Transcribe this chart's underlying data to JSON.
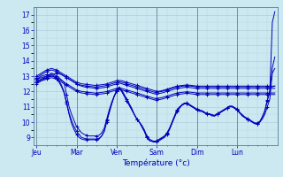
{
  "bg_color": "#cce8f0",
  "grid_color_major": "#a8c8d8",
  "grid_color_minor": "#b8d8e4",
  "line_color": "#0000bb",
  "marker_color": "#0000bb",
  "xlabel": "Température (°c)",
  "ylim": [
    8.5,
    17.5
  ],
  "yticks": [
    9,
    10,
    11,
    12,
    13,
    14,
    15,
    16,
    17
  ],
  "day_labels": [
    "Jeu",
    "Mar",
    "Ven",
    "Sam",
    "Dim",
    "Lun"
  ],
  "day_positions": [
    0,
    16,
    32,
    48,
    64,
    80
  ],
  "n_steps": 96,
  "curves": [
    [
      12.8,
      12.85,
      12.9,
      12.95,
      13.0,
      13.05,
      13.1,
      13.15,
      13.2,
      13.15,
      13.1,
      13.0,
      12.9,
      12.8,
      12.7,
      12.6,
      12.5,
      12.4,
      12.35,
      12.3,
      12.28,
      12.26,
      12.24,
      12.22,
      12.2,
      12.22,
      12.24,
      12.26,
      12.3,
      12.35,
      12.4,
      12.45,
      12.5,
      12.55,
      12.5,
      12.45,
      12.4,
      12.35,
      12.3,
      12.25,
      12.2,
      12.15,
      12.1,
      12.05,
      12.0,
      11.95,
      11.9,
      11.85,
      11.85,
      11.87,
      11.9,
      11.95,
      12.0,
      12.05,
      12.1,
      12.15,
      12.2,
      12.22,
      12.24,
      12.26,
      12.28,
      12.26,
      12.24,
      12.22,
      12.2,
      12.2,
      12.2,
      12.2,
      12.2,
      12.2,
      12.2,
      12.2,
      12.2,
      12.2,
      12.2,
      12.2,
      12.2,
      12.2,
      12.2,
      12.2,
      12.2,
      12.2,
      12.2,
      12.2,
      12.2,
      12.2,
      12.2,
      12.2,
      12.2,
      12.2,
      12.2,
      12.2,
      12.2,
      12.2,
      12.2,
      12.2
    ],
    [
      13.0,
      13.1,
      13.2,
      13.3,
      13.4,
      13.45,
      13.5,
      13.45,
      13.4,
      13.3,
      13.2,
      13.1,
      13.0,
      12.9,
      12.8,
      12.7,
      12.6,
      12.55,
      12.5,
      12.48,
      12.46,
      12.44,
      12.42,
      12.4,
      12.4,
      12.42,
      12.44,
      12.46,
      12.5,
      12.55,
      12.6,
      12.65,
      12.7,
      12.72,
      12.7,
      12.65,
      12.6,
      12.55,
      12.5,
      12.45,
      12.4,
      12.35,
      12.3,
      12.25,
      12.2,
      12.15,
      12.1,
      12.05,
      12.0,
      12.02,
      12.05,
      12.1,
      12.15,
      12.2,
      12.25,
      12.3,
      12.35,
      12.37,
      12.39,
      12.41,
      12.43,
      12.41,
      12.39,
      12.37,
      12.35,
      12.35,
      12.35,
      12.35,
      12.35,
      12.35,
      12.35,
      12.35,
      12.35,
      12.35,
      12.35,
      12.35,
      12.35,
      12.35,
      12.35,
      12.35,
      12.35,
      12.35,
      12.35,
      12.35,
      12.35,
      12.35,
      12.35,
      12.35,
      12.35,
      12.35,
      12.35,
      12.35,
      12.35,
      12.35,
      12.35,
      12.35
    ],
    [
      12.9,
      13.0,
      13.1,
      13.2,
      13.3,
      13.35,
      13.4,
      13.35,
      13.3,
      13.2,
      13.1,
      13.0,
      12.9,
      12.8,
      12.7,
      12.6,
      12.5,
      12.45,
      12.4,
      12.38,
      12.36,
      12.34,
      12.32,
      12.3,
      12.3,
      12.32,
      12.34,
      12.36,
      12.4,
      12.45,
      12.5,
      12.55,
      12.6,
      12.62,
      12.6,
      12.55,
      12.5,
      12.45,
      12.4,
      12.35,
      12.3,
      12.25,
      12.2,
      12.15,
      12.1,
      12.05,
      12.0,
      11.95,
      11.95,
      11.97,
      12.0,
      12.05,
      12.1,
      12.15,
      12.2,
      12.25,
      12.3,
      12.32,
      12.34,
      12.36,
      12.38,
      12.36,
      12.34,
      12.32,
      12.3,
      12.3,
      12.3,
      12.3,
      12.3,
      12.3,
      12.3,
      12.3,
      12.3,
      12.3,
      12.3,
      12.3,
      12.3,
      12.3,
      12.3,
      12.3,
      12.3,
      12.3,
      12.3,
      12.3,
      12.3,
      12.3,
      12.3,
      12.3,
      12.3,
      12.3,
      12.3,
      12.3,
      12.3,
      12.3,
      12.3,
      12.35
    ],
    [
      12.7,
      12.75,
      12.8,
      12.85,
      12.9,
      12.95,
      13.0,
      12.95,
      12.9,
      12.8,
      12.7,
      12.6,
      12.5,
      12.4,
      12.3,
      12.2,
      12.1,
      12.05,
      12.0,
      11.98,
      11.96,
      11.94,
      11.92,
      11.9,
      11.9,
      11.92,
      11.94,
      11.96,
      12.0,
      12.05,
      12.1,
      12.15,
      12.2,
      12.22,
      12.2,
      12.15,
      12.1,
      12.05,
      12.0,
      11.95,
      11.9,
      11.85,
      11.8,
      11.75,
      11.7,
      11.65,
      11.6,
      11.55,
      11.55,
      11.57,
      11.6,
      11.65,
      11.7,
      11.75,
      11.8,
      11.85,
      11.9,
      11.92,
      11.94,
      11.96,
      11.98,
      11.96,
      11.94,
      11.92,
      11.9,
      11.9,
      11.9,
      11.9,
      11.9,
      11.9,
      11.9,
      11.9,
      11.9,
      11.9,
      11.9,
      11.9,
      11.9,
      11.9,
      11.9,
      11.9,
      11.9,
      11.9,
      11.9,
      11.9,
      11.9,
      11.9,
      11.9,
      11.9,
      11.9,
      11.9,
      11.9,
      11.9,
      11.9,
      11.9,
      11.9,
      11.9
    ],
    [
      12.6,
      12.65,
      12.7,
      12.75,
      12.8,
      12.85,
      12.9,
      12.85,
      12.8,
      12.7,
      12.6,
      12.5,
      12.4,
      12.3,
      12.2,
      12.1,
      12.0,
      11.95,
      11.9,
      11.88,
      11.86,
      11.84,
      11.82,
      11.8,
      11.8,
      11.82,
      11.84,
      11.86,
      11.9,
      11.95,
      12.0,
      12.05,
      12.1,
      12.12,
      12.1,
      12.05,
      12.0,
      11.95,
      11.9,
      11.85,
      11.8,
      11.75,
      11.7,
      11.65,
      11.6,
      11.55,
      11.5,
      11.45,
      11.45,
      11.47,
      11.5,
      11.55,
      11.6,
      11.65,
      11.7,
      11.75,
      11.8,
      11.82,
      11.84,
      11.86,
      11.88,
      11.86,
      11.84,
      11.82,
      11.8,
      11.8,
      11.8,
      11.8,
      11.8,
      11.8,
      11.8,
      11.8,
      11.8,
      11.8,
      11.8,
      11.8,
      11.8,
      11.8,
      11.8,
      11.8,
      11.8,
      11.8,
      11.8,
      11.8,
      11.8,
      11.8,
      11.8,
      11.8,
      11.8,
      11.8,
      11.8,
      11.8,
      11.8,
      11.8,
      11.8,
      11.8
    ],
    [
      12.8,
      12.9,
      13.0,
      13.05,
      13.1,
      13.1,
      13.2,
      13.1,
      13.0,
      12.9,
      12.75,
      12.6,
      11.8,
      11.0,
      10.5,
      10.1,
      9.7,
      9.5,
      9.3,
      9.2,
      9.15,
      9.1,
      9.1,
      9.1,
      9.1,
      9.15,
      9.3,
      9.6,
      10.2,
      10.8,
      11.3,
      11.7,
      12.0,
      12.2,
      12.0,
      11.7,
      11.4,
      11.1,
      10.8,
      10.5,
      10.2,
      10.0,
      9.8,
      9.5,
      9.1,
      8.9,
      8.8,
      8.75,
      8.8,
      8.9,
      9.0,
      9.1,
      9.3,
      9.6,
      10.0,
      10.4,
      10.8,
      11.0,
      11.1,
      11.2,
      11.2,
      11.1,
      11.0,
      10.9,
      10.8,
      10.7,
      10.7,
      10.6,
      10.5,
      10.5,
      10.4,
      10.4,
      10.5,
      10.6,
      10.7,
      10.8,
      10.9,
      11.0,
      11.0,
      10.9,
      10.8,
      10.6,
      10.4,
      10.3,
      10.2,
      10.1,
      10.0,
      9.9,
      9.9,
      10.0,
      10.2,
      10.5,
      11.0,
      11.5,
      13.2,
      13.5
    ],
    [
      12.5,
      12.6,
      12.7,
      12.8,
      12.9,
      12.95,
      13.0,
      12.95,
      12.8,
      12.6,
      12.3,
      11.9,
      11.2,
      10.5,
      9.9,
      9.5,
      9.2,
      9.0,
      8.9,
      8.85,
      8.85,
      8.85,
      8.85,
      8.85,
      8.85,
      8.9,
      9.1,
      9.4,
      10.1,
      10.7,
      11.2,
      11.7,
      12.1,
      12.3,
      12.1,
      11.8,
      11.5,
      11.2,
      10.9,
      10.5,
      10.2,
      10.0,
      9.7,
      9.4,
      9.0,
      8.8,
      8.75,
      8.7,
      8.75,
      8.8,
      8.9,
      9.0,
      9.2,
      9.5,
      9.9,
      10.3,
      10.7,
      10.9,
      11.1,
      11.2,
      11.2,
      11.1,
      11.0,
      10.9,
      10.8,
      10.8,
      10.7,
      10.6,
      10.6,
      10.5,
      10.5,
      10.4,
      10.5,
      10.6,
      10.7,
      10.8,
      10.9,
      11.0,
      11.0,
      10.9,
      10.8,
      10.6,
      10.5,
      10.3,
      10.2,
      10.1,
      10.0,
      9.9,
      9.9,
      10.0,
      10.3,
      10.7,
      11.4,
      12.0,
      16.5,
      17.2
    ],
    [
      12.6,
      12.7,
      12.8,
      12.9,
      13.0,
      13.0,
      13.1,
      13.0,
      12.9,
      12.7,
      12.4,
      12.0,
      11.3,
      10.6,
      10.1,
      9.7,
      9.4,
      9.2,
      9.0,
      8.95,
      8.9,
      8.9,
      8.9,
      8.9,
      8.9,
      8.95,
      9.1,
      9.4,
      10.0,
      10.6,
      11.2,
      11.7,
      12.0,
      12.2,
      12.0,
      11.7,
      11.4,
      11.1,
      10.8,
      10.5,
      10.2,
      10.0,
      9.7,
      9.4,
      9.0,
      8.8,
      8.75,
      8.7,
      8.75,
      8.85,
      8.95,
      9.05,
      9.25,
      9.55,
      9.95,
      10.35,
      10.75,
      10.95,
      11.15,
      11.25,
      11.25,
      11.15,
      11.05,
      10.95,
      10.85,
      10.75,
      10.75,
      10.65,
      10.55,
      10.55,
      10.45,
      10.45,
      10.55,
      10.65,
      10.75,
      10.85,
      10.95,
      11.05,
      11.05,
      10.95,
      10.85,
      10.65,
      10.45,
      10.35,
      10.25,
      10.15,
      10.05,
      9.95,
      9.95,
      10.05,
      10.35,
      10.75,
      11.45,
      12.05,
      13.55,
      14.25
    ]
  ]
}
